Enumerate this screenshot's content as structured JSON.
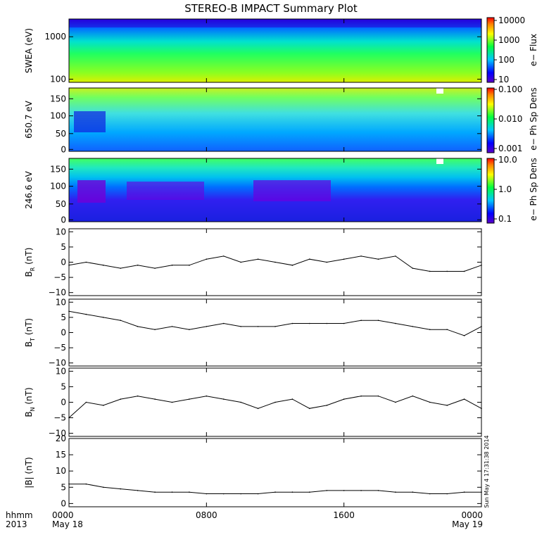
{
  "title": "STEREO-B IMPACT Summary Plot",
  "footer": {
    "hhmm": "hhmm",
    "year": "2013",
    "x_ticks": [
      {
        "hour": 0,
        "label": "0000",
        "date": "May 18"
      },
      {
        "hour": 8,
        "label": "0800",
        "date": ""
      },
      {
        "hour": 16,
        "label": "1600",
        "date": ""
      },
      {
        "hour": 24,
        "label": "0000",
        "date": "May 19"
      }
    ],
    "timestamp": "Sun May  4 17:31:38 2014"
  },
  "colors": {
    "line": "#000000",
    "background": "#ffffff"
  },
  "chart_data": [
    {
      "type": "heatmap",
      "ylabel": "SWEA (eV)",
      "ylim": [
        100,
        2000
      ],
      "log_y": true,
      "yticks": [
        "1000",
        "100"
      ],
      "colorbar": {
        "label": "e− Flux",
        "ticks": [
          "10000",
          "1000",
          "100",
          "10"
        ],
        "range": [
          10,
          10000
        ],
        "log": true
      }
    },
    {
      "type": "heatmap",
      "ylabel": "650.7 eV",
      "ylim": [
        0,
        180
      ],
      "yticks": [
        "150",
        "100",
        "50",
        "0"
      ],
      "colorbar": {
        "label": "e− Ph Sp Dens",
        "ticks": [
          "0.100",
          "0.010",
          "0.001"
        ],
        "range": [
          0.001,
          0.1
        ],
        "log": true
      }
    },
    {
      "type": "heatmap",
      "ylabel": "246.6 eV",
      "ylim": [
        0,
        180
      ],
      "yticks": [
        "150",
        "100",
        "50",
        "0"
      ],
      "colorbar": {
        "label": "e− Ph Sp Dens",
        "ticks": [
          "10.0",
          "1.0",
          "0.1"
        ],
        "range": [
          0.1,
          10
        ],
        "log": true
      }
    },
    {
      "type": "line",
      "ylabel": "B",
      "ylabel_sub": "R",
      "ylabel_unit": "(nT)",
      "ylim": [
        -11,
        11
      ],
      "yticks": [
        "10",
        "5",
        "0",
        "−5",
        "−10"
      ],
      "x": [
        0,
        1,
        2,
        3,
        4,
        5,
        6,
        7,
        8,
        9,
        10,
        11,
        12,
        13,
        14,
        15,
        16,
        17,
        18,
        19,
        20,
        21,
        22,
        23,
        24
      ],
      "values": [
        -1,
        0,
        -1,
        -2,
        -1,
        -2,
        -1,
        -1,
        1,
        2,
        0,
        1,
        0,
        -1,
        1,
        0,
        1,
        2,
        1,
        2,
        -2,
        -3,
        -3,
        -3,
        -1
      ]
    },
    {
      "type": "line",
      "ylabel": "B",
      "ylabel_sub": "T",
      "ylabel_unit": "(nT)",
      "ylim": [
        -11,
        11
      ],
      "yticks": [
        "10",
        "5",
        "0",
        "−5",
        "−10"
      ],
      "x": [
        0,
        1,
        2,
        3,
        4,
        5,
        6,
        7,
        8,
        9,
        10,
        11,
        12,
        13,
        14,
        15,
        16,
        17,
        18,
        19,
        20,
        21,
        22,
        23,
        24
      ],
      "values": [
        7,
        6,
        5,
        4,
        2,
        1,
        2,
        1,
        2,
        3,
        2,
        2,
        2,
        3,
        3,
        3,
        3,
        4,
        4,
        3,
        2,
        1,
        1,
        -1,
        2
      ]
    },
    {
      "type": "line",
      "ylabel": "B",
      "ylabel_sub": "N",
      "ylabel_unit": "(nT)",
      "ylim": [
        -11,
        11
      ],
      "yticks": [
        "10",
        "5",
        "0",
        "−5",
        "−10"
      ],
      "x": [
        0,
        1,
        2,
        3,
        4,
        5,
        6,
        7,
        8,
        9,
        10,
        11,
        12,
        13,
        14,
        15,
        16,
        17,
        18,
        19,
        20,
        21,
        22,
        23,
        24
      ],
      "values": [
        -5,
        0,
        -1,
        1,
        2,
        1,
        0,
        1,
        2,
        1,
        0,
        -2,
        0,
        1,
        -2,
        -1,
        1,
        2,
        2,
        0,
        2,
        0,
        -1,
        1,
        -2
      ]
    },
    {
      "type": "line",
      "ylabel": "|B| (nT)",
      "ylim": [
        -1,
        20
      ],
      "yticks": [
        "20",
        "15",
        "10",
        "5",
        "0"
      ],
      "x": [
        0,
        1,
        2,
        3,
        4,
        5,
        6,
        7,
        8,
        9,
        10,
        11,
        12,
        13,
        14,
        15,
        16,
        17,
        18,
        19,
        20,
        21,
        22,
        23,
        24
      ],
      "values": [
        6,
        6,
        5,
        4.5,
        4,
        3.5,
        3.5,
        3.5,
        3,
        3,
        3,
        3,
        3.5,
        3.5,
        3.5,
        4,
        4,
        4,
        4,
        3.5,
        3.5,
        3,
        3,
        3.5,
        3.5
      ]
    }
  ]
}
